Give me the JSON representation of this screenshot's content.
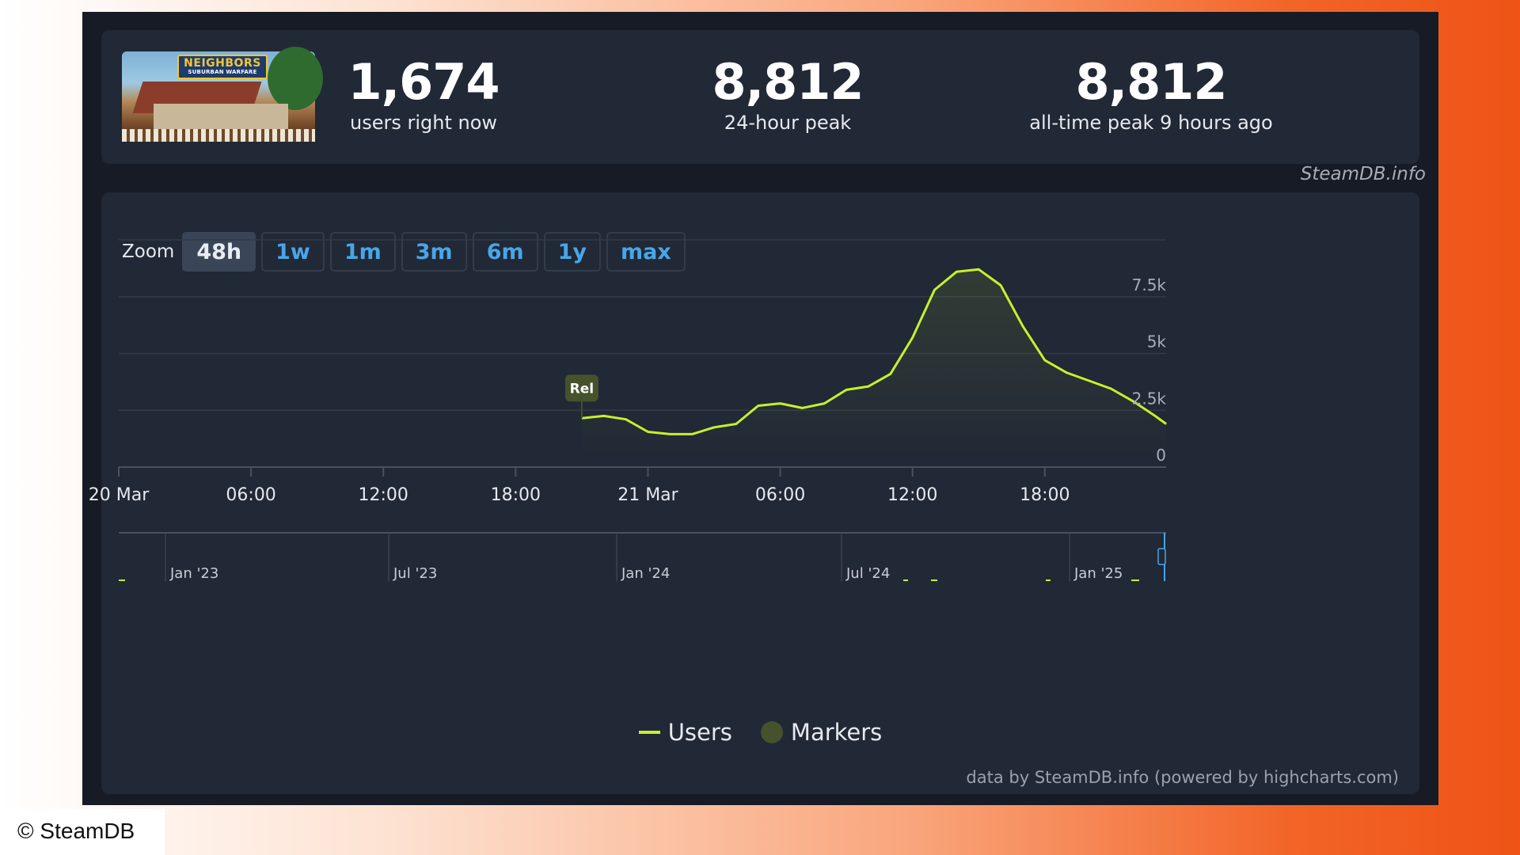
{
  "thumbnail": {
    "logo_line1": "NEIGHBORS",
    "logo_line2": "SUBURBAN WARFARE"
  },
  "stats": [
    {
      "value": "1,674",
      "label": "users right now"
    },
    {
      "value": "8,812",
      "label": "24-hour peak"
    },
    {
      "value": "8,812",
      "label": "all-time peak 9 hours ago"
    }
  ],
  "credit_top": "SteamDB.info",
  "zoom": {
    "label": "Zoom",
    "options": [
      "48h",
      "1w",
      "1m",
      "3m",
      "6m",
      "1y",
      "max"
    ],
    "active": "48h"
  },
  "chart_data": {
    "type": "line",
    "title": "",
    "xlabel": "",
    "ylabel": "",
    "x_tick_labels": [
      "20 Mar",
      "06:00",
      "12:00",
      "18:00",
      "21 Mar",
      "06:00",
      "12:00",
      "18:00"
    ],
    "y_tick_labels": [
      "0",
      "2.5k",
      "5k",
      "7.5k"
    ],
    "y_ticks": [
      0,
      2500,
      5000,
      7500
    ],
    "ylim": [
      0,
      10000
    ],
    "xlim_hours": [
      0,
      47.5
    ],
    "grid": true,
    "series": [
      {
        "name": "Users",
        "color": "#c6f12b",
        "x_hours": [
          21,
          22,
          23,
          24,
          25,
          26,
          27,
          28,
          29,
          30,
          31,
          32,
          33,
          34,
          35,
          36,
          37,
          38,
          39,
          40,
          41,
          42,
          43,
          44,
          45,
          46,
          47,
          47.5
        ],
        "values": [
          2150,
          2250,
          2100,
          1550,
          1450,
          1450,
          1750,
          1900,
          2700,
          2800,
          2600,
          2800,
          3400,
          3550,
          4100,
          5700,
          7800,
          8600,
          8700,
          8000,
          6200,
          4700,
          4150,
          3800,
          3450,
          2900,
          2250,
          1900
        ]
      }
    ],
    "markers": [
      {
        "label": "Rel",
        "x_hours": 21
      }
    ],
    "navigator_labels": [
      "Jan '23",
      "Jul '23",
      "Jan '24",
      "Jul '24",
      "Jan '25"
    ],
    "legend": [
      "Users",
      "Markers"
    ],
    "legend_position": "bottom-center"
  },
  "credit_bottom": "data by SteamDB.info (powered by highcharts.com)",
  "copyright": "© SteamDB"
}
